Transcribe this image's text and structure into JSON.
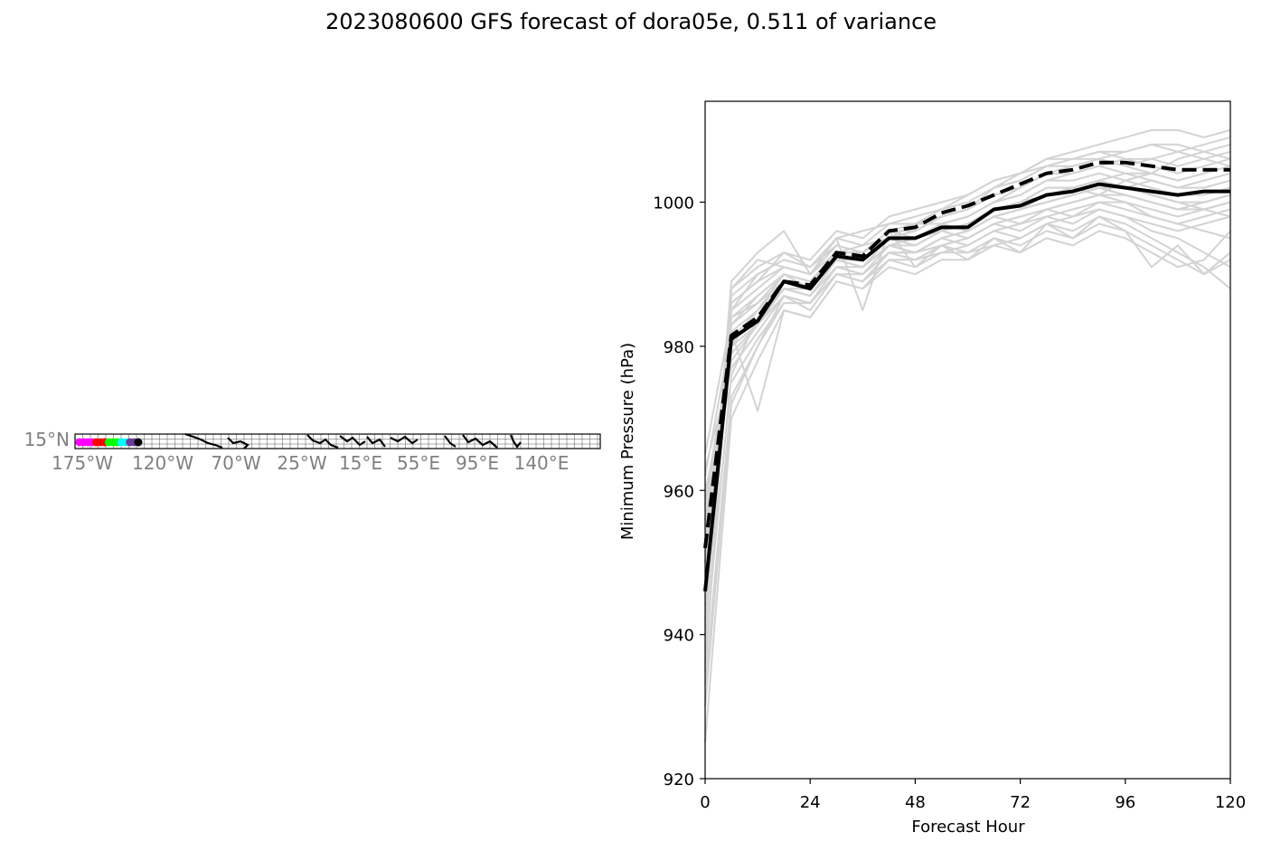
{
  "title": "2023080600 GFS forecast of dora05e, 0.511 of variance",
  "map": {
    "lat_labels": [
      "15°N"
    ],
    "lon_labels": [
      "175°W",
      "120°W",
      "70°W",
      "25°W",
      "15°E",
      "55°E",
      "95°E",
      "140°E"
    ],
    "label_color": "#808080",
    "track_points": [
      {
        "color": "#ff00ff"
      },
      {
        "color": "#ff00ff"
      },
      {
        "color": "#ff00ff"
      },
      {
        "color": "#ff00ff"
      },
      {
        "color": "#ff0000"
      },
      {
        "color": "#ff0000"
      },
      {
        "color": "#ff0000"
      },
      {
        "color": "#00ff00"
      },
      {
        "color": "#00ff00"
      },
      {
        "color": "#00ff00"
      },
      {
        "color": "#00ffff"
      },
      {
        "color": "#00ffff"
      },
      {
        "color": "#6a3d9a"
      },
      {
        "color": "#6a3d9a"
      },
      {
        "color": "#000000"
      }
    ]
  },
  "chart_data": {
    "type": "line",
    "xlabel": "Forecast Hour",
    "ylabel": "Minimum Pressure (hPa)",
    "xlim": [
      0,
      120
    ],
    "ylim": [
      920,
      1014
    ],
    "xticks": [
      0,
      24,
      48,
      72,
      96,
      120
    ],
    "yticks": [
      920,
      940,
      960,
      980,
      1000
    ],
    "x": [
      0,
      6,
      12,
      18,
      24,
      30,
      36,
      42,
      48,
      54,
      60,
      66,
      72,
      78,
      84,
      90,
      96,
      102,
      108,
      114,
      120
    ],
    "series": [
      {
        "style": "solid",
        "color": "#000000",
        "values": [
          946,
          981,
          983.5,
          989,
          988,
          992.5,
          992,
          995,
          995,
          996.5,
          996.5,
          999,
          999.5,
          1001,
          1001.5,
          1002.5,
          1002,
          1001.5,
          1001,
          1001.5,
          1001.5
        ]
      },
      {
        "style": "dashed",
        "color": "#000000",
        "values": [
          952,
          981.5,
          984,
          989,
          988.5,
          993,
          992.5,
          996,
          996.5,
          998.5,
          999.5,
          1001,
          1002.5,
          1004,
          1004.5,
          1005.5,
          1005.5,
          1005,
          1004.5,
          1004.5,
          1004.5
        ]
      }
    ],
    "ensemble_color": "#d3d3d3",
    "ensemble": [
      [
        935,
        985,
        990,
        992,
        991,
        995,
        996,
        997,
        998,
        999,
        1001,
        1003,
        1004,
        1006,
        1007,
        1008,
        1009,
        1010,
        1010,
        1009,
        1010
      ],
      [
        940,
        988,
        992,
        991,
        990,
        994,
        993,
        996,
        996,
        998,
        999,
        1002,
        1003,
        1005,
        1006,
        1007,
        1007,
        1008,
        1007,
        1008,
        1009
      ],
      [
        945,
        983,
        987,
        990,
        989,
        993,
        994,
        995,
        997,
        997,
        998,
        1000,
        1001,
        1003,
        1004,
        1005,
        1006,
        1006,
        1005,
        1006,
        1007
      ],
      [
        950,
        980,
        985,
        989,
        988,
        992,
        991,
        995,
        994,
        996,
        997,
        999,
        1000,
        1001,
        1002,
        1003,
        1004,
        1004,
        1003,
        1004,
        1005
      ],
      [
        955,
        978,
        983,
        988,
        987,
        991,
        990,
        994,
        993,
        995,
        996,
        998,
        999,
        1000,
        1001,
        1002,
        1002,
        1003,
        1002,
        1003,
        1004
      ],
      [
        960,
        975,
        981,
        986,
        986,
        990,
        989,
        993,
        992,
        994,
        995,
        997,
        998,
        999,
        1000,
        1001,
        1001,
        1000,
        999,
        1000,
        1001
      ],
      [
        925,
        970,
        978,
        985,
        984,
        989,
        988,
        992,
        992,
        993,
        994,
        996,
        997,
        998,
        999,
        1000,
        1000,
        999,
        998,
        999,
        1000
      ],
      [
        930,
        972,
        980,
        987,
        985,
        990,
        989,
        993,
        993,
        994,
        995,
        997,
        998,
        999,
        1000,
        1001,
        1000,
        998,
        997,
        998,
        999
      ],
      [
        942,
        986,
        989,
        993,
        992,
        996,
        995,
        998,
        999,
        1000,
        1001,
        1003,
        1004,
        1006,
        1006,
        1007,
        1006,
        1005,
        1004,
        1005,
        1006
      ],
      [
        948,
        984,
        986,
        990,
        988,
        993,
        992,
        995,
        996,
        998,
        999,
        1002,
        1003,
        1005,
        1005,
        1006,
        1005,
        1004,
        1003,
        1004,
        1005
      ],
      [
        952,
        982,
        985,
        990,
        989,
        993,
        993,
        996,
        997,
        998,
        999,
        1001,
        1002,
        1004,
        1004,
        1005,
        1004,
        1003,
        1002,
        1002,
        1003
      ],
      [
        958,
        979,
        983,
        988,
        987,
        992,
        992,
        995,
        995,
        997,
        998,
        1000,
        1001,
        1003,
        1003,
        1004,
        1003,
        1002,
        1001,
        1001,
        1002
      ],
      [
        963,
        977,
        982,
        987,
        986,
        991,
        991,
        994,
        994,
        996,
        997,
        999,
        1000,
        1002,
        1002,
        1003,
        1002,
        1001,
        1000,
        1000,
        1001
      ],
      [
        933,
        973,
        980,
        986,
        986,
        990,
        990,
        993,
        993,
        995,
        996,
        998,
        999,
        1000,
        1001,
        1002,
        1001,
        1000,
        999,
        999,
        1000
      ],
      [
        938,
        976,
        984,
        988,
        988,
        992,
        991,
        994,
        995,
        996,
        997,
        999,
        1000,
        1002,
        1002,
        1003,
        1002,
        1001,
        1000,
        999,
        998
      ],
      [
        944,
        989,
        993,
        996,
        990,
        995,
        985,
        996,
        991,
        994,
        992,
        995,
        993,
        997,
        995,
        998,
        996,
        991,
        994,
        990,
        992
      ],
      [
        947,
        987,
        990,
        992,
        991,
        994,
        993,
        996,
        995,
        997,
        996,
        998,
        997,
        999,
        998,
        1000,
        999,
        998,
        997,
        996,
        995
      ],
      [
        950,
        985,
        988,
        991,
        990,
        993,
        992,
        995,
        994,
        996,
        995,
        997,
        996,
        998,
        997,
        999,
        998,
        996,
        995,
        993,
        991
      ],
      [
        953,
        983,
        986,
        989,
        988,
        992,
        991,
        994,
        993,
        995,
        994,
        996,
        995,
        997,
        996,
        998,
        997,
        995,
        993,
        991,
        988
      ],
      [
        956,
        981,
        985,
        988,
        987,
        991,
        990,
        993,
        992,
        994,
        993,
        995,
        994,
        996,
        995,
        997,
        996,
        994,
        992,
        990,
        993
      ],
      [
        959,
        980,
        983,
        987,
        986,
        990,
        989,
        992,
        991,
        993,
        993,
        994,
        993,
        995,
        994,
        996,
        995,
        993,
        991,
        992,
        996
      ],
      [
        962,
        982,
        971,
        985,
        984,
        989,
        988,
        991,
        990,
        992,
        992,
        994,
        995,
        997,
        998,
        999,
        998,
        997,
        996,
        997,
        998
      ],
      [
        965,
        984,
        987,
        990,
        989,
        992,
        991,
        994,
        993,
        995,
        996,
        998,
        999,
        1001,
        1002,
        1001,
        1003,
        1004,
        1006,
        1007,
        1008
      ],
      [
        936,
        986,
        989,
        991,
        990,
        993,
        993,
        995,
        995,
        997,
        998,
        1000,
        1002,
        1004,
        1005,
        1006,
        1007,
        1008,
        1008,
        1007,
        1006
      ],
      [
        941,
        988,
        991,
        993,
        991,
        995,
        994,
        997,
        997,
        999,
        1000,
        1002,
        1004,
        1005,
        1006,
        1006,
        1005,
        1006,
        1007,
        1006,
        1005
      ]
    ]
  }
}
